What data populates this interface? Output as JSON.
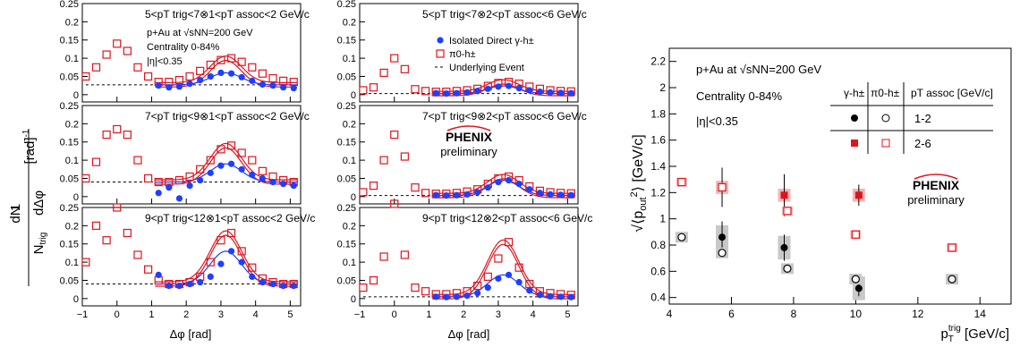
{
  "chart_data": [
    {
      "type": "scatter",
      "panel": "top-left",
      "title": "5<pT trig<7⊗1<pT assoc<2 GeV/c",
      "annotations": [
        "p+Au at √sNN=200 GeV",
        "Centrality 0-84%",
        "|η|<0.35"
      ],
      "ylim": [
        -0.02,
        0.25
      ],
      "xlim": [
        -1.0,
        5.3
      ],
      "yticks": [
        "0",
        "0.05",
        "0.1",
        "0.15",
        "0.2",
        "0.25"
      ],
      "xticks": [
        "−1",
        "0",
        "1",
        "2",
        "3",
        "4",
        "5"
      ],
      "underlying": 0.027,
      "series": [
        {
          "name": "Isolated Direct γ-h±",
          "x": [
            1.2,
            1.5,
            1.8,
            2.1,
            2.4,
            2.7,
            3.0,
            3.3,
            3.6,
            3.9,
            4.2,
            4.5,
            4.8,
            5.1
          ],
          "values": [
            0.025,
            0.02,
            0.022,
            0.03,
            0.04,
            0.05,
            0.06,
            0.058,
            0.048,
            0.038,
            0.028,
            0.025,
            0.02,
            0.018
          ]
        },
        {
          "name": "π0-h±",
          "x": [
            -0.9,
            -0.6,
            -0.3,
            0.0,
            0.3,
            0.6,
            0.9,
            1.2,
            1.5,
            1.8,
            2.1,
            2.4,
            2.7,
            3.0,
            3.3,
            3.6,
            3.9,
            4.2,
            4.5,
            4.8,
            5.1
          ],
          "values": [
            0.05,
            0.075,
            0.11,
            0.14,
            0.12,
            0.075,
            0.05,
            0.035,
            0.035,
            0.04,
            0.05,
            0.065,
            0.082,
            0.095,
            0.1,
            0.09,
            0.075,
            0.058,
            0.045,
            0.038,
            0.035
          ]
        }
      ]
    },
    {
      "type": "scatter",
      "panel": "top-middle",
      "title": "5<pT trig<7⊗2<pT assoc<6 GeV/c",
      "legend": [
        "Isolated Direct γ-h±",
        "π0-h±",
        "Underlying Event"
      ],
      "ylim": [
        -0.02,
        0.25
      ],
      "xlim": [
        -1.0,
        5.3
      ],
      "yticks": [
        "0",
        "0.05",
        "0.1",
        "0.15",
        "0.2",
        "0.25"
      ],
      "xticks": [
        "−1",
        "0",
        "1",
        "2",
        "3",
        "4",
        "5"
      ],
      "underlying": 0.003,
      "series": [
        {
          "name": "Isolated Direct γ-h±",
          "x": [
            1.2,
            1.5,
            1.8,
            2.1,
            2.4,
            2.7,
            3.0,
            3.3,
            3.6,
            3.9,
            4.2,
            4.5,
            4.8,
            5.1
          ],
          "values": [
            0.004,
            0.003,
            0.004,
            0.006,
            0.01,
            0.016,
            0.022,
            0.024,
            0.018,
            0.012,
            0.008,
            0.006,
            0.005,
            0.004
          ]
        },
        {
          "name": "π0-h±",
          "x": [
            -0.9,
            -0.6,
            -0.3,
            0.0,
            0.3,
            0.6,
            0.9,
            1.2,
            1.5,
            1.8,
            2.1,
            2.4,
            2.7,
            3.0,
            3.3,
            3.6,
            3.9,
            4.2,
            4.5,
            4.8,
            5.1
          ],
          "values": [
            0.012,
            0.02,
            0.06,
            0.1,
            0.07,
            0.015,
            0.01,
            0.008,
            0.008,
            0.01,
            0.012,
            0.016,
            0.024,
            0.032,
            0.035,
            0.03,
            0.022,
            0.016,
            0.012,
            0.01,
            0.009
          ]
        }
      ]
    },
    {
      "type": "scatter",
      "panel": "mid-left",
      "title": "7<pT trig<9⊗1<pT assoc<2 GeV/c",
      "ylim": [
        -0.02,
        0.25
      ],
      "xlim": [
        -1.0,
        5.3
      ],
      "yticks": [
        "0",
        "0.05",
        "0.1",
        "0.15",
        "0.2",
        "0.25"
      ],
      "xticks": [
        "−1",
        "0",
        "1",
        "2",
        "3",
        "4",
        "5"
      ],
      "underlying": 0.04,
      "series": [
        {
          "name": "Isolated Direct γ-h±",
          "x": [
            1.2,
            1.5,
            1.8,
            2.1,
            2.4,
            2.7,
            3.0,
            3.3,
            3.6,
            3.9,
            4.2,
            4.5,
            4.8,
            5.1
          ],
          "values": [
            0.01,
            0.025,
            -0.005,
            0.03,
            0.045,
            0.065,
            0.085,
            0.09,
            0.075,
            0.06,
            0.05,
            0.04,
            0.035,
            0.03
          ]
        },
        {
          "name": "π0-h±",
          "x": [
            -0.9,
            -0.6,
            -0.3,
            0.0,
            0.3,
            0.6,
            0.9,
            1.2,
            1.5,
            1.8,
            2.1,
            2.4,
            2.7,
            3.0,
            3.3,
            3.6,
            3.9,
            4.2,
            4.5,
            4.8,
            5.1
          ],
          "values": [
            0.05,
            0.095,
            0.17,
            0.185,
            0.17,
            0.1,
            0.05,
            0.04,
            0.04,
            0.045,
            0.055,
            0.075,
            0.1,
            0.13,
            0.14,
            0.12,
            0.1,
            0.07,
            0.055,
            0.045,
            0.04
          ]
        }
      ]
    },
    {
      "type": "scatter",
      "panel": "mid-middle",
      "title": "7<pT trig<9⊗2<pT assoc<6 GeV/c",
      "ylim": [
        -0.02,
        0.25
      ],
      "xlim": [
        -1.0,
        5.3
      ],
      "yticks": [
        "0",
        "0.05",
        "0.1",
        "0.15",
        "0.2",
        "0.25"
      ],
      "xticks": [
        "−1",
        "0",
        "1",
        "2",
        "3",
        "4",
        "5"
      ],
      "underlying": 0.003,
      "series": [
        {
          "name": "Isolated Direct γ-h±",
          "x": [
            1.2,
            1.5,
            1.8,
            2.1,
            2.4,
            2.7,
            3.0,
            3.3,
            3.6,
            3.9,
            4.2,
            4.5,
            4.8,
            5.1
          ],
          "values": [
            0.004,
            0.003,
            0.004,
            0.006,
            0.012,
            0.025,
            0.04,
            0.045,
            0.035,
            0.02,
            0.01,
            0.006,
            0.005,
            0.004
          ]
        },
        {
          "name": "π0-h±",
          "x": [
            -0.9,
            -0.6,
            -0.3,
            0.0,
            0.3,
            0.6,
            0.9,
            1.2,
            1.5,
            1.8,
            2.1,
            2.4,
            2.7,
            3.0,
            3.3,
            3.6,
            3.9,
            4.2,
            4.5,
            4.8,
            5.1
          ],
          "values": [
            0.012,
            0.03,
            0.1,
            0.17,
            0.11,
            0.025,
            0.01,
            0.008,
            0.008,
            0.01,
            0.014,
            0.02,
            0.035,
            0.05,
            0.055,
            0.045,
            0.028,
            0.016,
            0.012,
            0.01,
            0.009
          ]
        }
      ]
    },
    {
      "type": "scatter",
      "panel": "bottom-left",
      "title": "9<pT trig<12⊗1<pT assoc<2 GeV/c",
      "ylim": [
        -0.02,
        0.25
      ],
      "xlim": [
        -1.0,
        5.3
      ],
      "yticks": [
        "0",
        "0.05",
        "0.1",
        "0.15",
        "0.2",
        "0.25"
      ],
      "xticks": [
        "−1",
        "0",
        "1",
        "2",
        "3",
        "4",
        "5"
      ],
      "underlying": 0.04,
      "series": [
        {
          "name": "Isolated Direct γ-h±",
          "x": [
            1.2,
            1.5,
            1.8,
            2.1,
            2.4,
            2.7,
            3.0,
            3.3,
            3.6,
            3.9,
            4.2,
            4.5,
            4.8,
            5.1
          ],
          "values": [
            0.065,
            0.035,
            0.035,
            0.04,
            0.045,
            0.06,
            0.095,
            0.13,
            0.1,
            0.06,
            0.045,
            0.04,
            0.035,
            0.035
          ]
        },
        {
          "name": "π0-h±",
          "x": [
            -0.9,
            -0.6,
            -0.3,
            0.0,
            0.3,
            0.6,
            0.9,
            1.2,
            1.5,
            1.8,
            2.1,
            2.4,
            2.7,
            3.0,
            3.3,
            3.6,
            3.9,
            4.2,
            4.5,
            4.8,
            5.1
          ],
          "values": [
            0.1,
            0.2,
            0.16,
            0.25,
            0.18,
            0.12,
            0.08,
            0.05,
            0.04,
            0.04,
            0.045,
            0.06,
            0.1,
            0.16,
            0.18,
            0.13,
            0.085,
            0.055,
            0.045,
            0.04,
            0.04
          ]
        }
      ]
    },
    {
      "type": "scatter",
      "panel": "bottom-middle",
      "title": "9<pT trig<12⊗2<pT assoc<6 GeV/c",
      "ylim": [
        -0.02,
        0.25
      ],
      "xlim": [
        -1.0,
        5.3
      ],
      "yticks": [
        "0",
        "0.05",
        "0.1",
        "0.15",
        "0.2",
        "0.25"
      ],
      "xticks": [
        "−1",
        "0",
        "1",
        "2",
        "3",
        "4",
        "5"
      ],
      "underlying": 0.005,
      "series": [
        {
          "name": "Isolated Direct γ-h±",
          "x": [
            1.2,
            1.5,
            1.8,
            2.1,
            2.4,
            2.7,
            3.0,
            3.3,
            3.6,
            3.9,
            4.2,
            4.5,
            4.8,
            5.1
          ],
          "values": [
            0.005,
            0.004,
            0.005,
            0.008,
            0.015,
            0.03,
            0.055,
            0.065,
            0.045,
            0.022,
            0.01,
            0.006,
            0.005,
            0.004
          ]
        },
        {
          "name": "π0-h±",
          "x": [
            -0.9,
            -0.6,
            -0.3,
            0.0,
            0.3,
            0.6,
            0.9,
            1.2,
            1.5,
            1.8,
            2.1,
            2.4,
            2.7,
            3.0,
            3.3,
            3.6,
            3.9,
            4.2,
            4.5,
            4.8,
            5.1
          ],
          "values": [
            0.03,
            0.05,
            0.115,
            0.26,
            0.12,
            0.03,
            0.02,
            0.012,
            0.012,
            0.015,
            0.02,
            0.035,
            0.06,
            0.11,
            0.155,
            0.085,
            0.04,
            0.02,
            0.015,
            0.012,
            0.01
          ]
        }
      ]
    },
    {
      "type": "scatter",
      "panel": "right",
      "xlabel": "pT trig [GeV/c]",
      "ylabel": "√⟨pout²⟩ [GeV/c]",
      "xlim": [
        4,
        15
      ],
      "ylim": [
        0.35,
        2.3
      ],
      "xticks": [
        "4",
        "6",
        "8",
        "10",
        "12",
        "14"
      ],
      "yticks": [
        "0.4",
        "0.6",
        "0.8",
        "1",
        "1.2",
        "1.4",
        "1.6",
        "1.8",
        "2",
        "2.2"
      ],
      "annotations": [
        "p+Au at √sNN=200 GeV",
        "Centrality 0-84%",
        "|η|<0.35"
      ],
      "legend_table": {
        "header": [
          "γ-h±",
          "π0-h±",
          "pT assoc [GeV/c]"
        ],
        "rows": [
          "1-2",
          "2-6"
        ]
      },
      "series": [
        {
          "name": "γ-h± 1-2",
          "x": [
            5.7,
            7.7,
            10.1
          ],
          "values": [
            0.86,
            0.78,
            0.47
          ],
          "err": [
            0.12,
            0.1,
            0.06
          ]
        },
        {
          "name": "π0-h± 1-2",
          "x": [
            4.4,
            5.7,
            7.8,
            10.0,
            13.1
          ],
          "values": [
            0.86,
            0.74,
            0.62,
            0.54,
            0.54
          ]
        },
        {
          "name": "γ-h± 2-6",
          "x": [
            5.7,
            7.7,
            10.1
          ],
          "values": [
            1.24,
            1.18,
            1.18
          ],
          "err": [
            0.15,
            0.16,
            0.08
          ]
        },
        {
          "name": "π0-h± 2-6",
          "x": [
            4.4,
            5.7,
            7.8,
            10.0,
            13.1
          ],
          "values": [
            1.28,
            1.24,
            1.06,
            0.88,
            0.78
          ]
        }
      ]
    }
  ],
  "texts": {
    "left_ylabel": "1 / Ntrig dN/dΔφ [rad]⁻¹",
    "xlabel_left": "Δφ [rad]",
    "xlabel_middle": "Δφ [rad]",
    "logo_mid": "PHENIX",
    "logo_mid_sub": "preliminary",
    "logo_right": "PHENIX",
    "logo_right_sub": "preliminary"
  },
  "colors": {
    "blue": "#1f3fff",
    "red": "#e0141e",
    "gray": "#c8c8c8",
    "pink": "#f4b7b7"
  }
}
